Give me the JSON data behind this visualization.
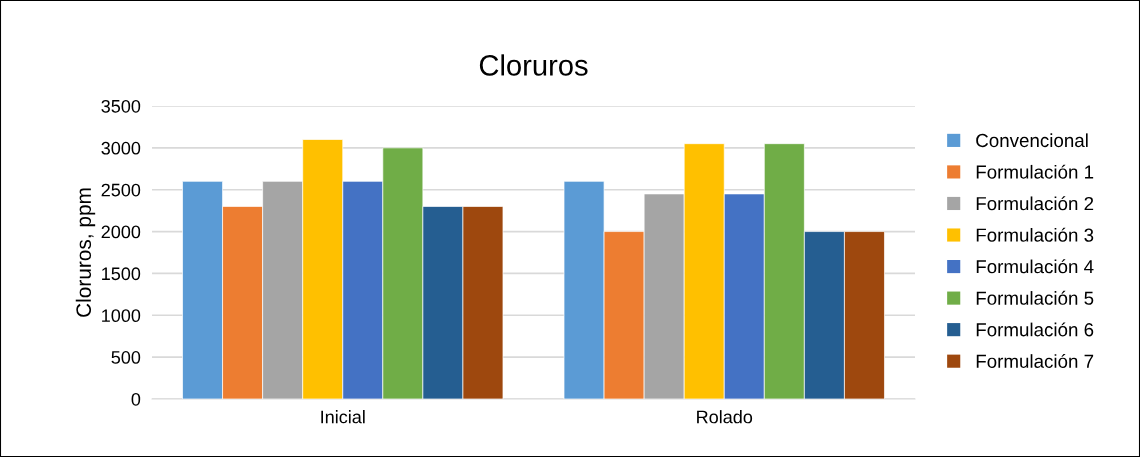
{
  "chart_data": {
    "type": "bar",
    "title": "Cloruros",
    "ylabel": "Cloruros, ppm",
    "categories": [
      "Inicial",
      "Rolado"
    ],
    "series": [
      {
        "name": "Convencional",
        "color": "#5b9bd5",
        "values": [
          2600,
          2600
        ]
      },
      {
        "name": "Formulación 1",
        "color": "#ed7d31",
        "values": [
          2300,
          2000
        ]
      },
      {
        "name": "Formulación 2",
        "color": "#a5a5a5",
        "values": [
          2600,
          2450
        ]
      },
      {
        "name": "Formulación 3",
        "color": "#ffc000",
        "values": [
          3100,
          3050
        ]
      },
      {
        "name": "Formulación 4",
        "color": "#4472c4",
        "values": [
          2600,
          2450
        ]
      },
      {
        "name": "Formulación 5",
        "color": "#70ad47",
        "values": [
          3000,
          3050
        ]
      },
      {
        "name": "Formulación 6",
        "color": "#255e91",
        "values": [
          2300,
          2000
        ]
      },
      {
        "name": "Formulación 7",
        "color": "#9e480e",
        "values": [
          2300,
          2000
        ]
      }
    ],
    "ylim": [
      0,
      3500
    ],
    "yticks": [
      0,
      500,
      1000,
      1500,
      2000,
      2500,
      3000,
      3500
    ],
    "grid": "y",
    "legend": "right"
  }
}
